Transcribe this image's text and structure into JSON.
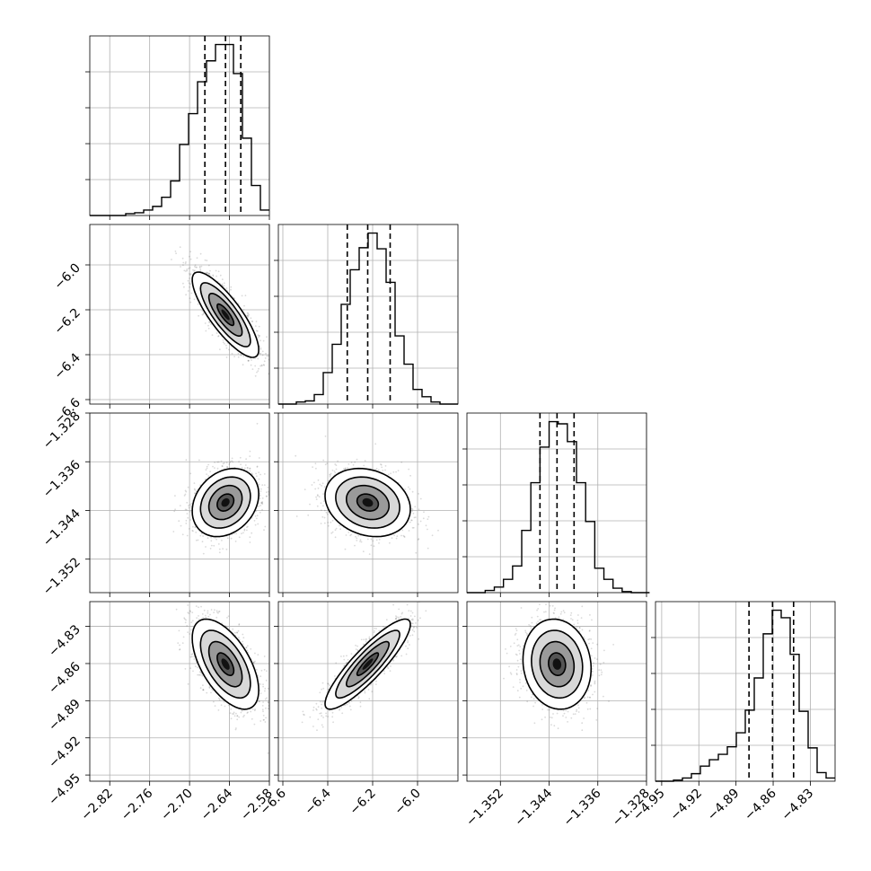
{
  "chart_data": {
    "type": "corner",
    "parameters": [
      {
        "key": "p0",
        "range": [
          -2.85,
          -2.58
        ],
        "ticks": [
          -2.82,
          -2.76,
          -2.7,
          -2.64,
          -2.58
        ],
        "tick_labels": [
          "−2.82",
          "−2.76",
          "−2.70",
          "−2.64",
          "−2.58"
        ],
        "quantiles": [
          -2.677,
          -2.646,
          -2.623
        ],
        "hist_bins": [
          -2.85,
          -2.8365,
          -2.823,
          -2.8095,
          -2.796,
          -2.7825,
          -2.769,
          -2.7555,
          -2.742,
          -2.7285,
          -2.715,
          -2.7015,
          -2.688,
          -2.6745,
          -2.661,
          -2.6475,
          -2.634,
          -2.6205,
          -2.607,
          -2.5935,
          -2.58
        ],
        "hist_counts": [
          0,
          0,
          0,
          0,
          2,
          3,
          6,
          10,
          20,
          38,
          78,
          112,
          147,
          170,
          188,
          188,
          156,
          85,
          33,
          6
        ]
      },
      {
        "key": "p1",
        "range": [
          -6.62,
          -5.82
        ],
        "ticks": [
          -6.6,
          -6.4,
          -6.2,
          -6.0
        ],
        "tick_labels": [
          "−6.6",
          "−6.4",
          "−6.2",
          "−6.0"
        ],
        "quantiles": [
          -6.313,
          -6.222,
          -6.122
        ],
        "hist_bins": [
          -6.62,
          -6.58,
          -6.54,
          -6.5,
          -6.46,
          -6.42,
          -6.38,
          -6.34,
          -6.3,
          -6.26,
          -6.22,
          -6.18,
          -6.14,
          -6.1,
          -6.06,
          -6.02,
          -5.98,
          -5.94,
          -5.9,
          -5.86,
          -5.82
        ],
        "hist_counts": [
          0,
          0,
          2,
          3,
          9,
          30,
          57,
          95,
          128,
          149,
          163,
          148,
          116,
          65,
          38,
          14,
          7,
          2,
          0,
          0
        ]
      },
      {
        "key": "p2",
        "range": [
          -1.3575,
          -1.328
        ],
        "ticks": [
          -1.352,
          -1.344,
          -1.336,
          -1.328
        ],
        "tick_labels": [
          "−1.352",
          "−1.344",
          "−1.336",
          "−1.328"
        ],
        "quantiles": [
          -1.3455,
          -1.3427,
          -1.3399
        ],
        "hist_bins": [
          -1.3575,
          -1.356,
          -1.3545,
          -1.353,
          -1.3515,
          -1.35,
          -1.3485,
          -1.347,
          -1.3455,
          -1.344,
          -1.3425,
          -1.341,
          -1.3395,
          -1.338,
          -1.3365,
          -1.335,
          -1.3335,
          -1.332,
          -1.3305,
          -1.329,
          -1.3275
        ],
        "hist_counts": [
          0,
          0,
          2,
          5,
          12,
          24,
          56,
          99,
          131,
          154,
          152,
          136,
          99,
          64,
          22,
          12,
          4,
          1,
          0,
          0
        ]
      },
      {
        "key": "p3",
        "range": [
          -4.955,
          -4.81
        ],
        "ticks": [
          -4.95,
          -4.92,
          -4.89,
          -4.86,
          -4.83
        ],
        "tick_labels": [
          "−4.95",
          "−4.92",
          "−4.89",
          "−4.86",
          "−4.83"
        ],
        "quantiles": [
          -4.8795,
          -4.8605,
          -4.8435
        ],
        "hist_bins": [
          -4.955,
          -4.94775,
          -4.9405,
          -4.93325,
          -4.926,
          -4.91875,
          -4.9115,
          -4.90425,
          -4.897,
          -4.88975,
          -4.8825,
          -4.87525,
          -4.868,
          -4.86075,
          -4.8535,
          -4.84625,
          -4.839,
          -4.83175,
          -4.8245,
          -4.81725,
          -4.81
        ],
        "hist_counts": [
          0,
          0,
          1,
          3,
          7,
          14,
          20,
          25,
          32,
          45,
          66,
          96,
          137,
          159,
          152,
          118,
          65,
          31,
          8,
          3
        ]
      }
    ],
    "pairs": [
      {
        "row": 1,
        "col": 0,
        "mean": [
          -2.646,
          -6.222
        ],
        "sd": [
          0.025,
          0.095
        ],
        "corr": -0.82
      },
      {
        "row": 2,
        "col": 0,
        "mean": [
          -2.646,
          -1.3427
        ],
        "sd": [
          0.025,
          0.0028
        ],
        "corr": 0.25
      },
      {
        "row": 2,
        "col": 1,
        "mean": [
          -6.222,
          -1.3427
        ],
        "sd": [
          0.095,
          0.0028
        ],
        "corr": -0.2
      },
      {
        "row": 3,
        "col": 0,
        "mean": [
          -2.646,
          -4.8605
        ],
        "sd": [
          0.025,
          0.0182
        ],
        "corr": -0.58
      },
      {
        "row": 3,
        "col": 1,
        "mean": [
          -6.222,
          -4.8605
        ],
        "sd": [
          0.095,
          0.0182
        ],
        "corr": 0.88
      },
      {
        "row": 3,
        "col": 2,
        "mean": [
          -1.3427,
          -4.8605
        ],
        "sd": [
          0.0028,
          0.0182
        ],
        "corr": -0.1
      }
    ],
    "contour_levels_sigma": [
      0.5,
      1.0,
      1.5,
      2.0
    ],
    "grid": true
  }
}
